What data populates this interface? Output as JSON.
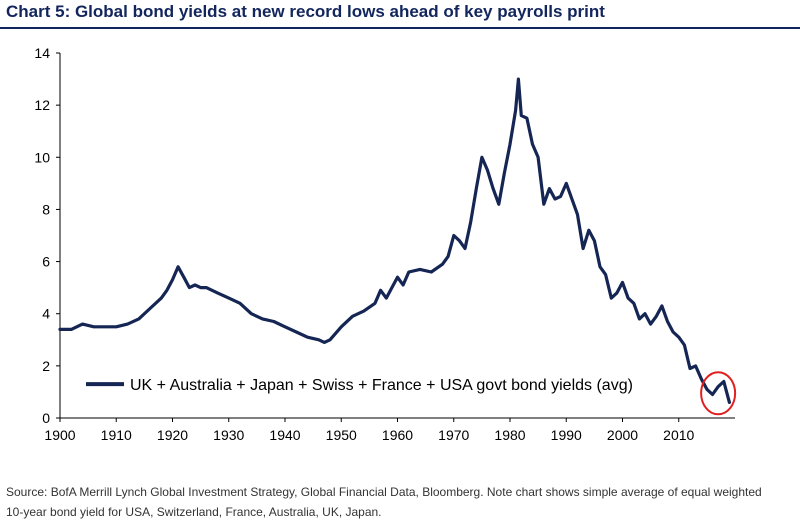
{
  "header": {
    "title": "Chart 5: Global bond yields at new record lows ahead of key payrolls print"
  },
  "footer": {
    "source": "Source: BofA Merrill Lynch Global Investment Strategy, Global Financial Data, Bloomberg. Note chart shows simple average of equal weighted 10-year bond yield for USA, Switzerland, France, Australia, UK, Japan."
  },
  "colors": {
    "series": "#152655",
    "title": "#12255c",
    "highlight_circle": "#e02020"
  },
  "chart_data": {
    "type": "line",
    "title": "",
    "xlabel": "",
    "ylabel": "",
    "xlim": [
      1900,
      2020
    ],
    "ylim": [
      0,
      14
    ],
    "xticks": [
      1900,
      1910,
      1920,
      1930,
      1940,
      1950,
      1960,
      1970,
      1980,
      1990,
      2000,
      2010
    ],
    "yticks": [
      0,
      2,
      4,
      6,
      8,
      10,
      12,
      14
    ],
    "grid": false,
    "legend_position": "bottom-left",
    "series": [
      {
        "name": "UK + Australia + Japan + Swiss + France + USA govt bond yields (avg)",
        "x": [
          1900,
          1902,
          1904,
          1906,
          1908,
          1910,
          1912,
          1914,
          1916,
          1918,
          1919,
          1920,
          1921,
          1922,
          1923,
          1924,
          1925,
          1926,
          1928,
          1930,
          1932,
          1934,
          1936,
          1938,
          1940,
          1942,
          1944,
          1946,
          1947,
          1948,
          1950,
          1952,
          1954,
          1956,
          1957,
          1958,
          1959,
          1960,
          1961,
          1962,
          1964,
          1966,
          1968,
          1969,
          1970,
          1971,
          1972,
          1973,
          1974,
          1975,
          1976,
          1977,
          1978,
          1979,
          1980,
          1981,
          1981.5,
          1982,
          1983,
          1984,
          1985,
          1986,
          1987,
          1988,
          1989,
          1990,
          1991,
          1992,
          1993,
          1994,
          1995,
          1996,
          1997,
          1998,
          1999,
          2000,
          2001,
          2002,
          2003,
          2004,
          2005,
          2006,
          2007,
          2008,
          2009,
          2010,
          2011,
          2012,
          2013,
          2014,
          2015,
          2016,
          2017,
          2018,
          2019
        ],
        "y": [
          3.4,
          3.4,
          3.6,
          3.5,
          3.5,
          3.5,
          3.6,
          3.8,
          4.2,
          4.6,
          4.9,
          5.3,
          5.8,
          5.4,
          5.0,
          5.1,
          5.0,
          5.0,
          4.8,
          4.6,
          4.4,
          4.0,
          3.8,
          3.7,
          3.5,
          3.3,
          3.1,
          3.0,
          2.9,
          3.0,
          3.5,
          3.9,
          4.1,
          4.4,
          4.9,
          4.6,
          5.0,
          5.4,
          5.1,
          5.6,
          5.7,
          5.6,
          5.9,
          6.2,
          7.0,
          6.8,
          6.5,
          7.5,
          8.8,
          10.0,
          9.5,
          8.8,
          8.2,
          9.4,
          10.5,
          11.8,
          13.0,
          11.6,
          11.5,
          10.5,
          10.0,
          8.2,
          8.8,
          8.4,
          8.5,
          9.0,
          8.4,
          7.8,
          6.5,
          7.2,
          6.8,
          5.8,
          5.5,
          4.6,
          4.8,
          5.2,
          4.6,
          4.4,
          3.8,
          4.0,
          3.6,
          3.9,
          4.3,
          3.7,
          3.3,
          3.1,
          2.8,
          1.9,
          2.0,
          1.5,
          1.1,
          0.9,
          1.2,
          1.4,
          0.6
        ]
      }
    ]
  }
}
